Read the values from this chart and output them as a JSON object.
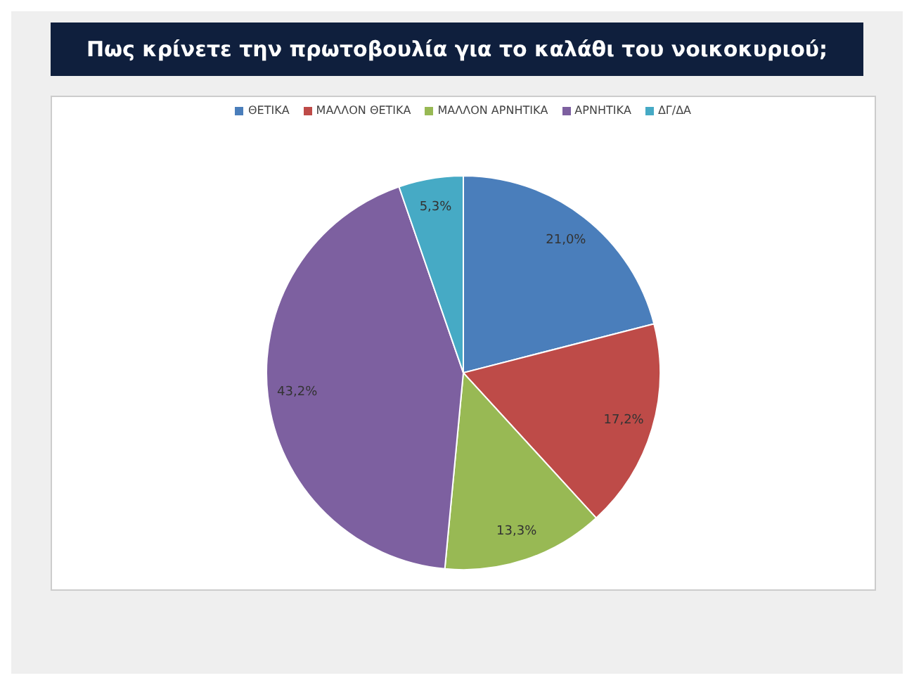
{
  "chart_data": {
    "type": "pie",
    "title": "Πως κρίνετε την πρωτοβουλία για το καλάθι του νοικοκυριού;",
    "categories": [
      "ΘΕΤΙΚΑ",
      "ΜΑΛΛΟΝ ΘΕΤΙΚΑ",
      "ΜΑΛΛΟΝ ΑΡΝΗΤΙΚΑ",
      "ΑΡΝΗΤΙΚΑ",
      "ΔΓ/ΔΑ"
    ],
    "values": [
      21.0,
      17.2,
      13.3,
      43.2,
      5.3
    ],
    "colors": [
      "#4a7ebb",
      "#be4b48",
      "#98b954",
      "#7d60a0",
      "#46aac5"
    ],
    "value_labels": [
      "21,0%",
      "17,2%",
      "13,3%",
      "43,2%",
      "5,3%"
    ],
    "legend": "top"
  }
}
